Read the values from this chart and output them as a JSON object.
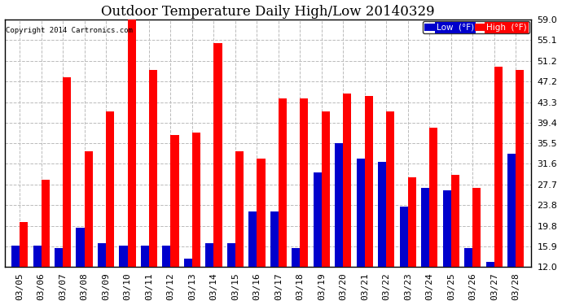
{
  "title": "Outdoor Temperature Daily High/Low 20140329",
  "copyright": "Copyright 2014 Cartronics.com",
  "dates": [
    "03/05",
    "03/06",
    "03/07",
    "03/08",
    "03/09",
    "03/10",
    "03/11",
    "03/12",
    "03/13",
    "03/14",
    "03/15",
    "03/16",
    "03/17",
    "03/18",
    "03/19",
    "03/20",
    "03/21",
    "03/22",
    "03/23",
    "03/24",
    "03/25",
    "03/26",
    "03/27",
    "03/28"
  ],
  "high": [
    20.5,
    28.5,
    48.0,
    34.0,
    41.5,
    59.0,
    49.5,
    37.0,
    37.5,
    54.5,
    34.0,
    32.5,
    44.0,
    44.0,
    41.5,
    45.0,
    44.5,
    41.5,
    29.0,
    38.5,
    29.5,
    27.0,
    50.0,
    49.5
  ],
  "low": [
    16.0,
    16.0,
    15.5,
    19.5,
    16.5,
    16.0,
    16.0,
    16.0,
    13.5,
    16.5,
    16.5,
    22.5,
    22.5,
    15.5,
    30.0,
    35.5,
    32.5,
    32.0,
    23.5,
    27.0,
    26.5,
    15.5,
    13.0,
    33.5
  ],
  "ylim": [
    12.0,
    59.0
  ],
  "yticks": [
    12.0,
    15.9,
    19.8,
    23.8,
    27.7,
    31.6,
    35.5,
    39.4,
    43.3,
    47.2,
    51.2,
    55.1,
    59.0
  ],
  "bar_width": 0.38,
  "high_color": "#ff0000",
  "low_color": "#0000cc",
  "bg_color": "#ffffff",
  "grid_color": "#bbbbbb",
  "title_fontsize": 12,
  "tick_fontsize": 8,
  "legend_low_label": "Low  (°F)",
  "legend_high_label": "High  (°F)"
}
